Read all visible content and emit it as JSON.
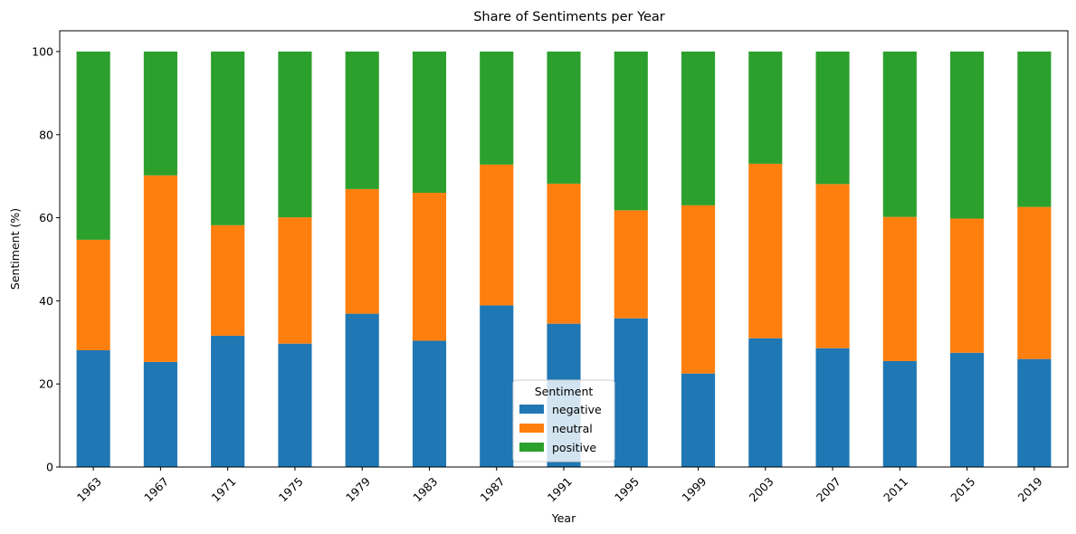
{
  "chart_data": {
    "type": "bar",
    "stacked": true,
    "title": "Share of Sentiments per Year",
    "xlabel": "Year",
    "ylabel": "Sentiment (%)",
    "ylim": [
      0,
      105
    ],
    "yticks": [
      0,
      20,
      40,
      60,
      80,
      100
    ],
    "grid": false,
    "categories": [
      "1963",
      "1967",
      "1971",
      "1975",
      "1979",
      "1983",
      "1987",
      "1991",
      "1995",
      "1999",
      "2003",
      "2007",
      "2011",
      "2015",
      "2019"
    ],
    "series": [
      {
        "name": "negative",
        "color": "#1f77b4",
        "values": [
          28.1,
          25.3,
          31.6,
          29.7,
          36.9,
          30.4,
          38.9,
          34.5,
          35.8,
          22.5,
          31.0,
          28.6,
          25.5,
          27.5,
          26.0
        ]
      },
      {
        "name": "neutral",
        "color": "#ff7f0e",
        "values": [
          26.6,
          44.9,
          26.6,
          30.4,
          30.0,
          35.6,
          33.9,
          33.7,
          26.0,
          40.5,
          42.0,
          39.5,
          34.7,
          32.3,
          36.6
        ]
      },
      {
        "name": "positive",
        "color": "#2ca02c",
        "values": [
          45.3,
          29.8,
          41.8,
          39.9,
          33.1,
          34.0,
          27.2,
          31.8,
          38.2,
          37.0,
          27.0,
          31.9,
          39.8,
          40.2,
          37.4
        ]
      }
    ],
    "legend": {
      "title": "Sentiment",
      "position": "bottom-center"
    }
  }
}
